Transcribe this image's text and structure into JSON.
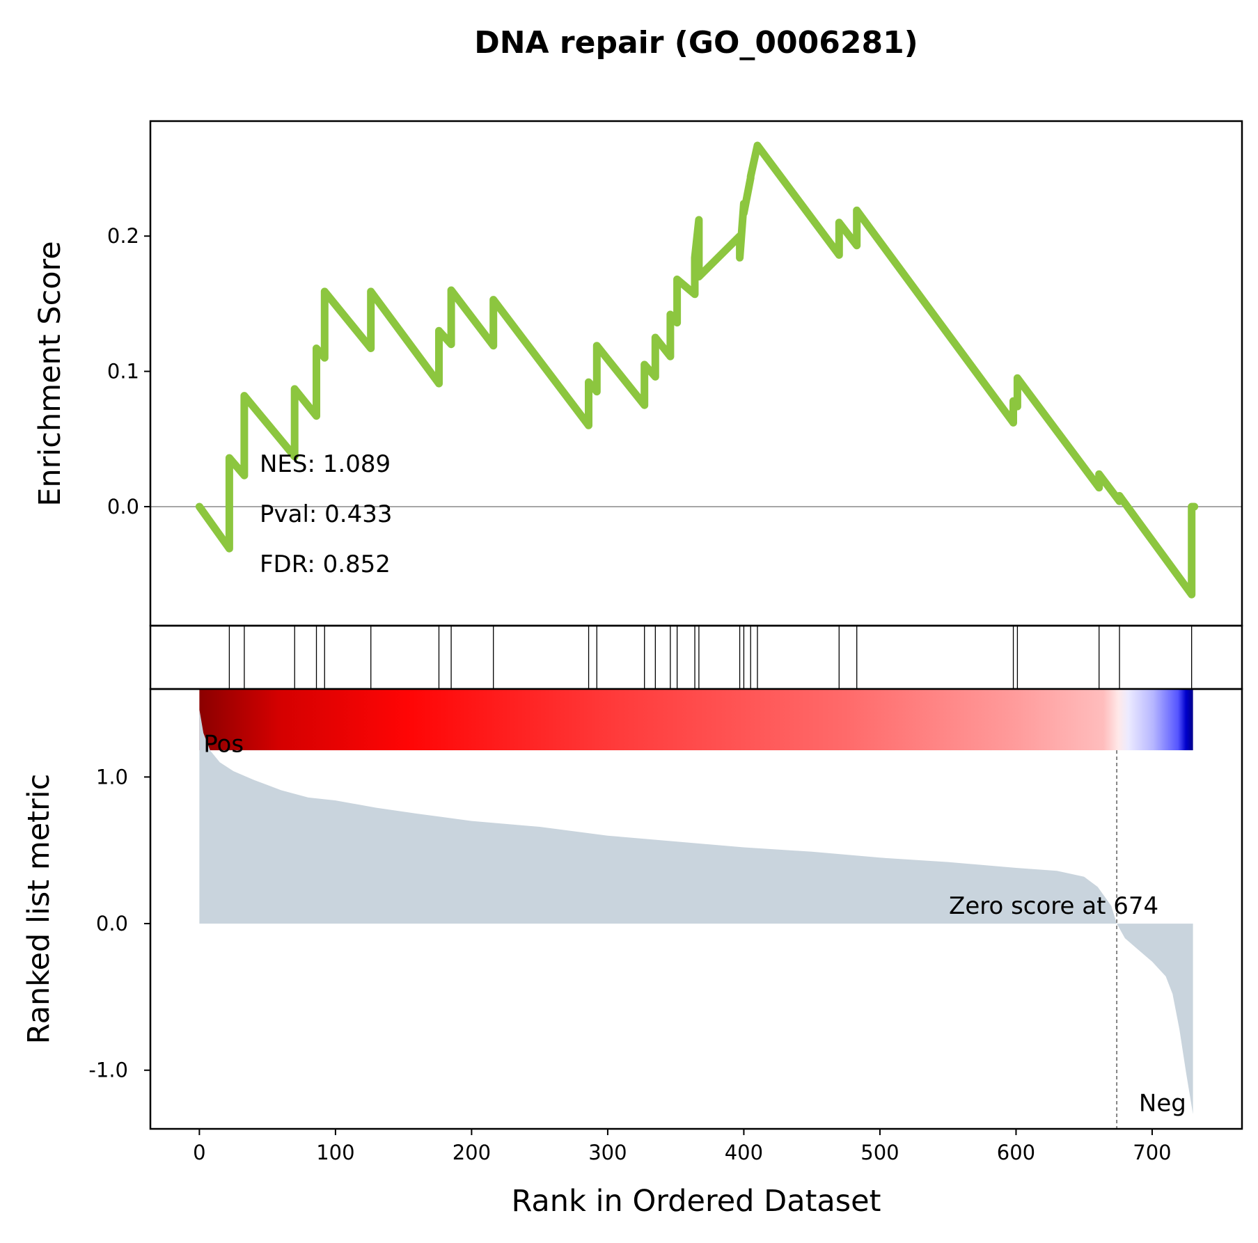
{
  "chart_data": {
    "type": "line",
    "title": "DNA repair (GO_0006281)",
    "xlabel": "Rank in Ordered Dataset",
    "xlim": [
      -36,
      766
    ],
    "xticks": [
      "0",
      "100",
      "200",
      "300",
      "400",
      "500",
      "600",
      "700"
    ],
    "es_panel": {
      "ylabel": "Enrichment Score",
      "ylim": [
        -0.088,
        0.285
      ],
      "yticks": [
        "0.0",
        "0.1",
        "0.2"
      ],
      "line_color": "#8cc63f",
      "zero_line": true,
      "stats": {
        "nes": "NES: 1.089",
        "pval": "Pval: 0.433",
        "fdr": "FDR: 0.852"
      },
      "hit_ranks": [
        22,
        33,
        70,
        86,
        92,
        126,
        176,
        185,
        216,
        286,
        292,
        327,
        335,
        346,
        351,
        364,
        367,
        397,
        400,
        405,
        410,
        470,
        483,
        598,
        601,
        661,
        676,
        729
      ],
      "running_es": {
        "x": [
          0,
          22,
          22,
          33,
          33,
          70,
          70,
          86,
          86,
          92,
          92,
          126,
          126,
          176,
          176,
          185,
          185,
          216,
          216,
          286,
          286,
          292,
          292,
          327,
          327,
          335,
          335,
          346,
          346,
          351,
          351,
          364,
          364,
          367,
          367,
          397,
          397,
          400,
          400,
          405,
          405,
          410,
          410,
          470,
          470,
          483,
          483,
          598,
          598,
          601,
          601,
          661,
          661,
          676,
          676,
          729,
          729,
          731
        ],
        "y": [
          0.0,
          -0.031,
          0.036,
          0.023,
          0.082,
          0.037,
          0.087,
          0.067,
          0.117,
          0.11,
          0.159,
          0.117,
          0.159,
          0.091,
          0.13,
          0.12,
          0.16,
          0.119,
          0.153,
          0.06,
          0.092,
          0.085,
          0.119,
          0.075,
          0.105,
          0.096,
          0.125,
          0.111,
          0.142,
          0.136,
          0.168,
          0.157,
          0.184,
          0.212,
          0.17,
          0.2,
          0.184,
          0.224,
          0.217,
          0.243,
          0.244,
          0.267,
          0.267,
          0.186,
          0.21,
          0.193,
          0.219,
          0.062,
          0.078,
          0.074,
          0.095,
          0.014,
          0.024,
          0.004,
          0.008,
          -0.065,
          0.0,
          0.0
        ]
      }
    },
    "rank_panel": {
      "ylabel": "Ranked list metric",
      "ylim": [
        -1.4,
        1.6
      ],
      "yticks": [
        "1.0",
        "0.0",
        "-1.0"
      ],
      "fill_color": "#c9d4dd",
      "pos_label": "Pos",
      "neg_label": "Neg",
      "pos_color": "#ff0000",
      "neg_color": "#0000ff",
      "zero_cross_rank": 674,
      "zero_label": "Zero score at 674",
      "n_genes": 731,
      "metric_curve": {
        "rank": [
          0,
          3,
          8,
          15,
          25,
          40,
          60,
          80,
          100,
          130,
          160,
          200,
          250,
          300,
          350,
          400,
          450,
          500,
          550,
          600,
          630,
          650,
          660,
          670,
          674,
          680,
          690,
          700,
          710,
          715,
          720,
          725,
          730
        ],
        "value": [
          1.46,
          1.3,
          1.18,
          1.1,
          1.04,
          0.98,
          0.91,
          0.86,
          0.84,
          0.79,
          0.75,
          0.7,
          0.66,
          0.6,
          0.56,
          0.52,
          0.49,
          0.45,
          0.42,
          0.38,
          0.36,
          0.32,
          0.25,
          0.12,
          0.0,
          -0.1,
          -0.18,
          -0.26,
          -0.36,
          -0.48,
          -0.72,
          -1.02,
          -1.3
        ]
      }
    }
  }
}
